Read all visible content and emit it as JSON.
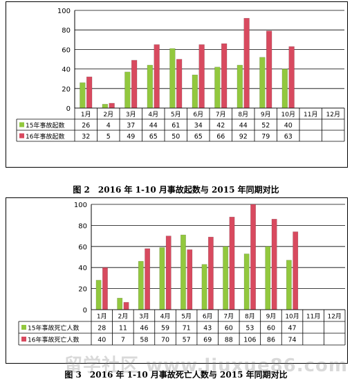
{
  "chart_data": [
    {
      "type": "bar",
      "ylim": [
        0,
        100
      ],
      "yticks": [
        0,
        20,
        40,
        60,
        80,
        100
      ],
      "grid": true,
      "legend": "table-left",
      "categories": [
        "1月",
        "2月",
        "3月",
        "4月",
        "5月",
        "6月",
        "7月",
        "8月",
        "9月",
        "10月",
        "11月",
        "12月"
      ],
      "series": [
        {
          "name": "15年事故起数",
          "color": "#92c83e",
          "values": [
            26,
            4,
            37,
            44,
            61,
            34,
            42,
            44,
            52,
            40,
            null,
            null
          ],
          "labels": [
            "26",
            "4",
            "37",
            "44",
            "61",
            "34",
            "42",
            "44",
            "52",
            "40",
            "",
            ""
          ]
        },
        {
          "name": "16年事故起数",
          "color": "#d84a5f",
          "values": [
            32,
            5,
            49,
            65,
            50,
            65,
            66,
            92,
            79,
            63,
            null,
            null
          ],
          "labels": [
            "32",
            "5",
            "49",
            "65",
            "50",
            "65",
            "66",
            "92",
            "79",
            "63",
            "",
            ""
          ]
        }
      ]
    },
    {
      "type": "bar",
      "ylim": [
        0,
        100
      ],
      "yticks": [
        0,
        20,
        40,
        60,
        80,
        100
      ],
      "grid": true,
      "legend": "table-left",
      "categories": [
        "1月",
        "2月",
        "3月",
        "4月",
        "5月",
        "6月",
        "7月",
        "8月",
        "9月",
        "10月",
        "11月",
        "12月"
      ],
      "series": [
        {
          "name": "15年事故死亡人数",
          "color": "#92c83e",
          "values": [
            28,
            11,
            46,
            59,
            71,
            43,
            60,
            53,
            60,
            47,
            null,
            null
          ],
          "labels": [
            "28",
            "11",
            "46",
            "59",
            "71",
            "43",
            "60",
            "53",
            "60",
            "47",
            "",
            ""
          ]
        },
        {
          "name": "16年事故死亡人数",
          "color": "#d84a5f",
          "values": [
            40,
            7,
            58,
            70,
            57,
            69,
            88,
            106,
            86,
            74,
            null,
            null
          ],
          "labels": [
            "40",
            "7",
            "58",
            "70",
            "57",
            "69",
            "88",
            "106",
            "86",
            "74",
            "",
            ""
          ]
        }
      ]
    }
  ],
  "captions": {
    "fig2": "图 2　2016 年 1-10 月事故起数与 2015 年同期对比",
    "fig3": "图 3　2016 年 1-10 月事故死亡人数与 2015 年同期对比"
  },
  "watermark": "留学社区 www.liuxue86.com"
}
